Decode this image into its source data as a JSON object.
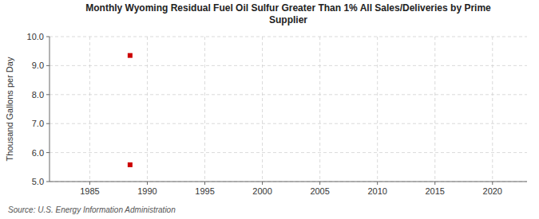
{
  "chart_data": {
    "type": "scatter",
    "title": "Monthly Wyoming Residual Fuel Oil Sulfur Greater Than 1% All Sales/Deliveries by Prime\nSupplier",
    "ylabel": "Thousand Gallons per Day",
    "source": "Source: U.S. Energy Information Administration",
    "x": [
      1988.5,
      1988.5
    ],
    "values": [
      9.35,
      5.58
    ],
    "color": "#cc0000",
    "marker": "square",
    "xlim": [
      1981.5,
      2023
    ],
    "ylim": [
      5.0,
      10.0
    ],
    "xticks": [
      1985,
      1990,
      1995,
      2000,
      2005,
      2010,
      2015,
      2020
    ],
    "yticks": [
      {
        "value": 5.0,
        "label": "5.0"
      },
      {
        "value": 6.0,
        "label": "6.0"
      },
      {
        "value": 7.0,
        "label": "7.0"
      },
      {
        "value": 8.0,
        "label": "8.0"
      },
      {
        "value": 9.0,
        "label": "9.0"
      },
      {
        "value": 10.0,
        "label": "10.0"
      }
    ],
    "grid": true
  }
}
